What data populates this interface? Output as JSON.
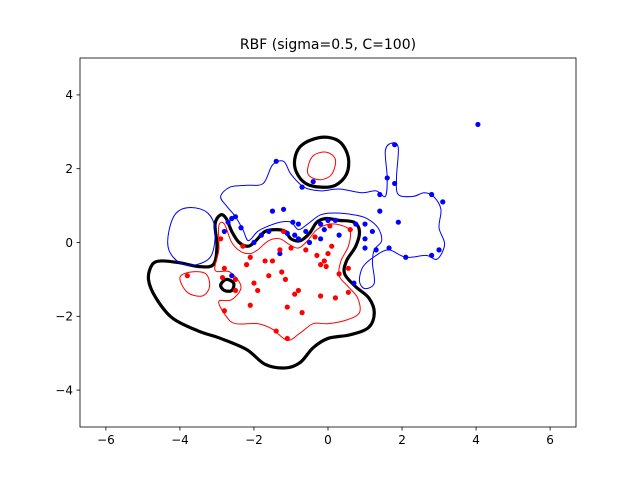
{
  "chart_data": {
    "type": "scatter",
    "title": "RBF (sigma=0.5, C=100)",
    "xlabel": "",
    "ylabel": "",
    "xlim": [
      -6.7,
      6.7
    ],
    "ylim": [
      -5,
      5
    ],
    "xticks": [
      -6,
      -4,
      -2,
      0,
      2,
      4,
      6
    ],
    "yticks": [
      -4,
      -2,
      0,
      2,
      4
    ],
    "grid": false,
    "colors": {
      "blue": "#0000ff",
      "red": "#ff0000",
      "boundary": "#000000"
    },
    "series": [
      {
        "color": "#0000ff",
        "points": [
          [
            -1.4,
            2.2
          ],
          [
            -0.4,
            1.65
          ],
          [
            -0.7,
            1.5
          ],
          [
            1.6,
            1.75
          ],
          [
            1.8,
            2.65
          ],
          [
            1.8,
            1.6
          ],
          [
            1.4,
            1.3
          ],
          [
            1.4,
            0.85
          ],
          [
            1.2,
            0.3
          ],
          [
            1.0,
            0.5
          ],
          [
            1.0,
            0.1
          ],
          [
            1.3,
            -0.2
          ],
          [
            0.75,
            0.5
          ],
          [
            0.2,
            0.6
          ],
          [
            0.0,
            0.6
          ],
          [
            -0.2,
            0.5
          ],
          [
            -0.6,
            0.3
          ],
          [
            -0.95,
            0.55
          ],
          [
            -0.8,
            0.5
          ],
          [
            -0.9,
            0.2
          ],
          [
            -1.1,
            0.25
          ],
          [
            -1.2,
            0.9
          ],
          [
            -1.5,
            0.85
          ],
          [
            -1.8,
            0.2
          ],
          [
            -2.0,
            0.0
          ],
          [
            -2.35,
            0.4
          ],
          [
            -2.5,
            0.7
          ],
          [
            -2.6,
            0.65
          ],
          [
            -2.7,
            0.55
          ],
          [
            -2.8,
            0.3
          ],
          [
            -0.5,
            0.0
          ],
          [
            -0.2,
            0.1
          ],
          [
            0.3,
            0.2
          ],
          [
            1.0,
            -0.15
          ],
          [
            1.65,
            -0.15
          ],
          [
            1.9,
            0.55
          ],
          [
            2.1,
            -0.4
          ],
          [
            2.8,
            -0.35
          ],
          [
            2.8,
            1.3
          ],
          [
            3.0,
            -0.2
          ],
          [
            3.1,
            1.1
          ],
          [
            4.05,
            3.2
          ],
          [
            -2.6,
            -0.9
          ],
          [
            0.7,
            -1.1
          ],
          [
            -0.8,
            0.1
          ],
          [
            -1.3,
            -0.3
          ],
          [
            -1.6,
            0.3
          ],
          [
            -0.1,
            0.35
          ]
        ]
      },
      {
        "color": "#ff0000",
        "points": [
          [
            -3.8,
            -0.9
          ],
          [
            -2.9,
            0.1
          ],
          [
            -2.8,
            -0.7
          ],
          [
            -2.5,
            -1.0
          ],
          [
            -2.1,
            -0.4
          ],
          [
            -2.0,
            -1.1
          ],
          [
            -1.9,
            -1.3
          ],
          [
            -2.1,
            -1.7
          ],
          [
            -2.8,
            -1.85
          ],
          [
            -2.5,
            -1.3
          ],
          [
            -1.4,
            -2.4
          ],
          [
            -1.1,
            -2.6
          ],
          [
            -1.1,
            -1.75
          ],
          [
            -0.8,
            -1.3
          ],
          [
            -0.7,
            -1.9
          ],
          [
            -1.25,
            -0.8
          ],
          [
            -1.15,
            -1.0
          ],
          [
            -1.5,
            -0.5
          ],
          [
            -1.3,
            -0.2
          ],
          [
            -1.0,
            -0.15
          ],
          [
            -0.6,
            -0.2
          ],
          [
            -0.3,
            -0.35
          ],
          [
            -0.1,
            -0.5
          ],
          [
            -0.2,
            -0.6
          ],
          [
            -0.05,
            -0.65
          ],
          [
            0.0,
            -0.3
          ],
          [
            0.1,
            -0.1
          ],
          [
            0.05,
            0.45
          ],
          [
            0.6,
            0.35
          ],
          [
            0.55,
            -0.7
          ],
          [
            0.55,
            -1.35
          ],
          [
            0.2,
            -1.5
          ],
          [
            -0.2,
            -1.45
          ],
          [
            -0.9,
            -1.4
          ],
          [
            -1.7,
            -0.5
          ],
          [
            -2.2,
            -0.6
          ],
          [
            -2.85,
            -0.95
          ],
          [
            -1.2,
            0.3
          ],
          [
            -0.35,
            0.15
          ],
          [
            0.3,
            -0.85
          ],
          [
            -1.6,
            -0.9
          ],
          [
            -2.3,
            -0.1
          ]
        ]
      }
    ],
    "contours": [
      {
        "color": "#000000",
        "width": 3.2,
        "path": [
          [
            -4.75,
            -0.6
          ],
          [
            -4.5,
            -0.5
          ],
          [
            -4.0,
            -0.55
          ],
          [
            -3.5,
            -0.65
          ],
          [
            -3.1,
            -0.6
          ],
          [
            -3.0,
            -0.1
          ],
          [
            -3.05,
            0.5
          ],
          [
            -2.9,
            0.75
          ],
          [
            -2.75,
            0.65
          ],
          [
            -2.6,
            0.3
          ],
          [
            -2.4,
            0.0
          ],
          [
            -2.15,
            -0.1
          ],
          [
            -1.95,
            0.05
          ],
          [
            -1.7,
            0.3
          ],
          [
            -1.4,
            0.35
          ],
          [
            -1.15,
            0.3
          ],
          [
            -1.0,
            0.1
          ],
          [
            -0.75,
            0.05
          ],
          [
            -0.5,
            0.25
          ],
          [
            -0.3,
            0.55
          ],
          [
            -0.05,
            0.65
          ],
          [
            0.3,
            0.6
          ],
          [
            0.7,
            0.55
          ],
          [
            0.85,
            0.3
          ],
          [
            0.75,
            -0.1
          ],
          [
            0.5,
            -0.5
          ],
          [
            0.45,
            -0.85
          ],
          [
            0.75,
            -1.2
          ],
          [
            1.1,
            -1.5
          ],
          [
            1.25,
            -1.9
          ],
          [
            1.1,
            -2.3
          ],
          [
            0.6,
            -2.5
          ],
          [
            0.0,
            -2.6
          ],
          [
            -0.4,
            -2.85
          ],
          [
            -0.75,
            -3.25
          ],
          [
            -1.15,
            -3.4
          ],
          [
            -1.7,
            -3.3
          ],
          [
            -2.2,
            -2.9
          ],
          [
            -2.9,
            -2.6
          ],
          [
            -3.5,
            -2.4
          ],
          [
            -4.2,
            -2.05
          ],
          [
            -4.65,
            -1.5
          ],
          [
            -4.85,
            -1.0
          ],
          [
            -4.75,
            -0.6
          ]
        ]
      },
      {
        "color": "#000000",
        "width": 3.2,
        "path": [
          [
            -0.9,
            2.25
          ],
          [
            -0.75,
            2.6
          ],
          [
            -0.4,
            2.8
          ],
          [
            0.0,
            2.85
          ],
          [
            0.35,
            2.7
          ],
          [
            0.55,
            2.3
          ],
          [
            0.5,
            1.85
          ],
          [
            0.2,
            1.55
          ],
          [
            -0.2,
            1.5
          ],
          [
            -0.6,
            1.6
          ],
          [
            -0.85,
            1.9
          ],
          [
            -0.9,
            2.25
          ]
        ]
      },
      {
        "color": "#000000",
        "width": 3.2,
        "path": [
          [
            -2.9,
            -1.15
          ],
          [
            -2.75,
            -1.0
          ],
          [
            -2.55,
            -1.1
          ],
          [
            -2.6,
            -1.3
          ],
          [
            -2.8,
            -1.3
          ],
          [
            -2.9,
            -1.15
          ]
        ]
      },
      {
        "color": "#ff0000",
        "width": 1,
        "path": [
          [
            -0.55,
            2.0
          ],
          [
            -0.4,
            2.35
          ],
          [
            -0.05,
            2.45
          ],
          [
            0.2,
            2.25
          ],
          [
            0.1,
            1.85
          ],
          [
            -0.2,
            1.7
          ],
          [
            -0.5,
            1.8
          ],
          [
            -0.55,
            2.0
          ]
        ]
      },
      {
        "color": "#ff0000",
        "width": 1,
        "path": [
          [
            -3.05,
            -0.75
          ],
          [
            -2.95,
            -0.2
          ],
          [
            -2.95,
            0.45
          ],
          [
            -2.8,
            0.5
          ],
          [
            -2.6,
            0.0
          ],
          [
            -2.35,
            -0.25
          ],
          [
            -2.1,
            -0.3
          ],
          [
            -1.9,
            -0.2
          ],
          [
            -1.6,
            0.05
          ],
          [
            -1.3,
            0.1
          ],
          [
            -1.05,
            -0.05
          ],
          [
            -0.8,
            -0.15
          ],
          [
            -0.55,
            0.05
          ],
          [
            -0.3,
            0.35
          ],
          [
            0.05,
            0.5
          ],
          [
            0.4,
            0.45
          ],
          [
            0.6,
            0.3
          ],
          [
            0.55,
            -0.1
          ],
          [
            0.35,
            -0.5
          ],
          [
            0.3,
            -0.9
          ],
          [
            0.55,
            -1.2
          ],
          [
            0.8,
            -1.5
          ],
          [
            0.85,
            -1.9
          ],
          [
            0.5,
            -2.1
          ],
          [
            0.0,
            -2.2
          ],
          [
            -0.4,
            -2.2
          ],
          [
            -0.75,
            -2.45
          ],
          [
            -1.1,
            -2.65
          ],
          [
            -1.5,
            -2.35
          ],
          [
            -1.9,
            -2.2
          ],
          [
            -2.5,
            -2.2
          ],
          [
            -2.75,
            -2.0
          ],
          [
            -2.95,
            -1.6
          ],
          [
            -2.6,
            -1.55
          ],
          [
            -2.35,
            -1.2
          ],
          [
            -2.65,
            -0.8
          ],
          [
            -3.05,
            -0.75
          ]
        ]
      },
      {
        "color": "#ff0000",
        "width": 1,
        "path": [
          [
            -4.0,
            -0.95
          ],
          [
            -3.8,
            -1.35
          ],
          [
            -3.4,
            -1.45
          ],
          [
            -3.2,
            -1.2
          ],
          [
            -3.3,
            -0.85
          ],
          [
            -3.7,
            -0.8
          ],
          [
            -4.0,
            -0.95
          ]
        ]
      },
      {
        "color": "#0000ff",
        "width": 1,
        "path": [
          [
            -4.3,
            0.3
          ],
          [
            -4.1,
            0.8
          ],
          [
            -3.7,
            0.95
          ],
          [
            -3.25,
            0.8
          ],
          [
            -3.05,
            0.35
          ],
          [
            -3.15,
            -0.35
          ],
          [
            -3.55,
            -0.6
          ],
          [
            -4.0,
            -0.55
          ],
          [
            -4.3,
            -0.2
          ],
          [
            -4.3,
            0.3
          ]
        ]
      },
      {
        "color": "#0000ff",
        "width": 1,
        "path": [
          [
            -2.9,
            1.25
          ],
          [
            -2.65,
            1.5
          ],
          [
            -2.2,
            1.55
          ],
          [
            -1.75,
            1.6
          ],
          [
            -1.5,
            2.1
          ],
          [
            -1.2,
            2.2
          ],
          [
            -1.0,
            1.85
          ],
          [
            -0.65,
            1.5
          ],
          [
            -0.2,
            1.4
          ],
          [
            0.3,
            1.45
          ],
          [
            0.9,
            1.35
          ],
          [
            1.3,
            1.4
          ],
          [
            1.55,
            1.25
          ],
          [
            1.6,
            1.75
          ],
          [
            1.55,
            2.5
          ],
          [
            1.75,
            2.7
          ],
          [
            1.9,
            2.55
          ],
          [
            1.85,
            1.75
          ],
          [
            1.9,
            1.3
          ],
          [
            2.3,
            1.25
          ],
          [
            2.6,
            1.35
          ],
          [
            2.85,
            1.25
          ],
          [
            3.05,
            0.9
          ],
          [
            3.0,
            0.4
          ],
          [
            3.15,
            -0.05
          ],
          [
            2.95,
            -0.45
          ],
          [
            2.65,
            -0.35
          ],
          [
            2.1,
            -0.4
          ],
          [
            1.65,
            -0.2
          ],
          [
            1.3,
            -0.35
          ],
          [
            0.95,
            -0.65
          ],
          [
            0.85,
            -1.05
          ],
          [
            1.0,
            -1.25
          ],
          [
            1.25,
            -1.1
          ],
          [
            1.2,
            -0.55
          ],
          [
            1.25,
            -0.2
          ],
          [
            1.45,
            0.05
          ],
          [
            1.35,
            0.4
          ],
          [
            1.05,
            0.65
          ],
          [
            0.7,
            0.75
          ],
          [
            0.2,
            0.8
          ],
          [
            -0.2,
            0.75
          ],
          [
            -0.55,
            0.5
          ],
          [
            -0.8,
            0.35
          ],
          [
            -1.0,
            0.55
          ],
          [
            -1.3,
            0.55
          ],
          [
            -1.6,
            0.45
          ],
          [
            -1.9,
            0.3
          ],
          [
            -2.15,
            0.05
          ],
          [
            -2.3,
            0.35
          ],
          [
            -2.5,
            0.7
          ],
          [
            -2.75,
            1.0
          ],
          [
            -2.9,
            1.25
          ]
        ]
      }
    ]
  }
}
